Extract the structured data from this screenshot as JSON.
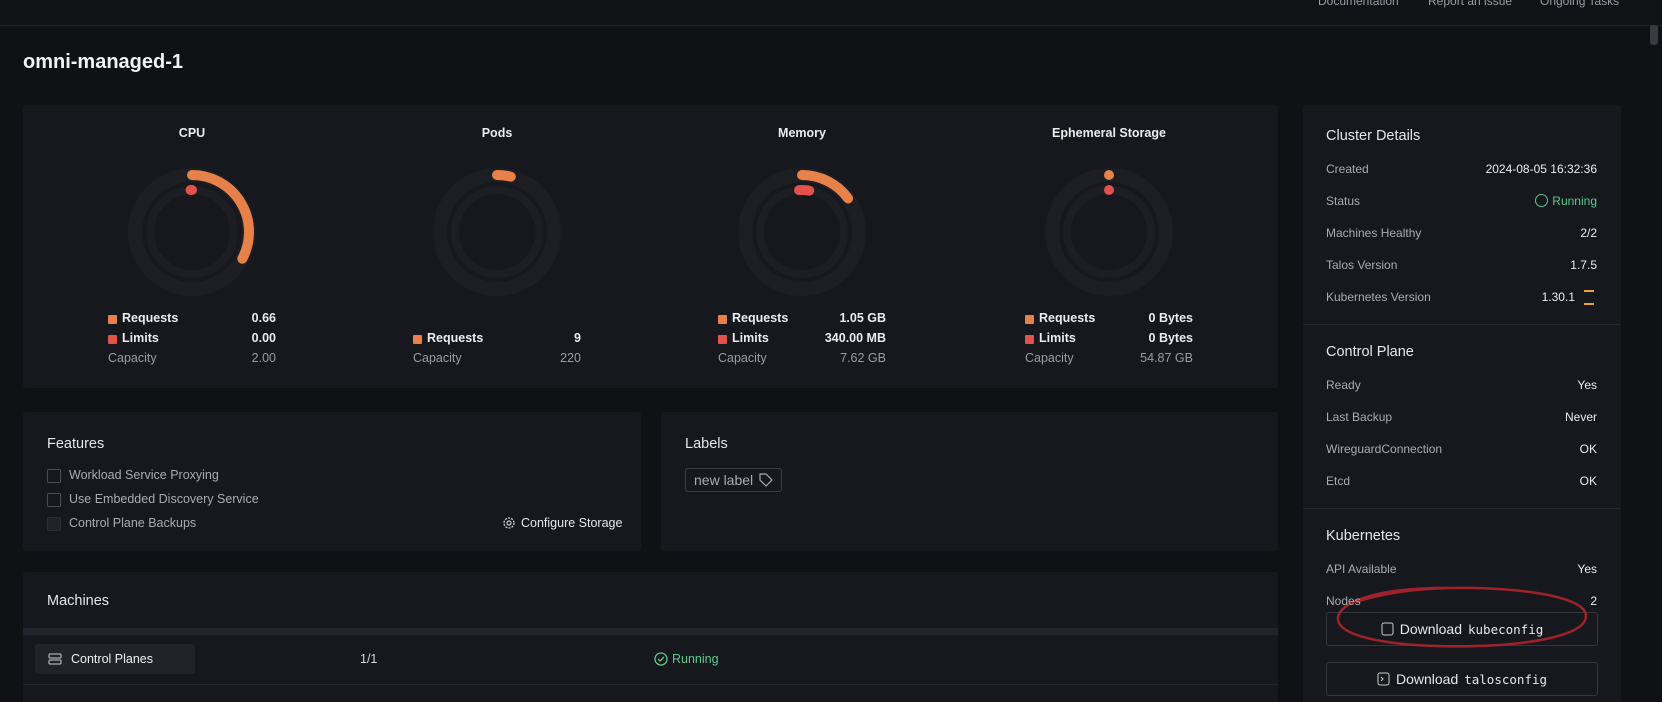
{
  "header": {
    "links": [
      "Documentation",
      "Report an issue",
      "Ongoing Tasks"
    ]
  },
  "title": "omni-managed-1",
  "gauges": [
    {
      "title": "CPU",
      "rows": [
        {
          "label": "Requests",
          "value": "0.66"
        },
        {
          "label": "Limits",
          "value": "0.00"
        },
        {
          "label": "Capacity",
          "value": "2.00"
        }
      ]
    },
    {
      "title": "Pods",
      "rows": [
        {
          "label": "Requests",
          "value": "9"
        },
        {
          "label": "Capacity",
          "value": "220"
        }
      ]
    },
    {
      "title": "Memory",
      "rows": [
        {
          "label": "Requests",
          "value": "1.05 GB"
        },
        {
          "label": "Limits",
          "value": "340.00 MB"
        },
        {
          "label": "Capacity",
          "value": "7.62 GB"
        }
      ]
    },
    {
      "title": "Ephemeral Storage",
      "rows": [
        {
          "label": "Requests",
          "value": "0 Bytes"
        },
        {
          "label": "Limits",
          "value": "0 Bytes"
        },
        {
          "label": "Capacity",
          "value": "54.87 GB"
        }
      ]
    }
  ],
  "features": {
    "title": "Features",
    "items": [
      "Workload Service Proxying",
      "Use Embedded Discovery Service",
      "Control Plane Backups"
    ],
    "action": "Configure Storage"
  },
  "labels": {
    "title": "Labels",
    "tag": "new label"
  },
  "machines": {
    "title": "Machines",
    "rows": [
      {
        "name": "Control Planes",
        "count": "1/1",
        "status": "Running"
      }
    ]
  },
  "sidebar": [
    {
      "title": "Cluster Details",
      "rows": [
        {
          "label": "Created",
          "value": "2024-08-05 16:32:36"
        },
        {
          "label": "Status",
          "value": "Running"
        },
        {
          "label": "Machines Healthy",
          "value": "2/2"
        },
        {
          "label": "Talos Version",
          "value": "1.7.5"
        },
        {
          "label": "Kubernetes Version",
          "value": "1.30.1"
        }
      ]
    },
    {
      "title": "Control Plane",
      "rows": [
        {
          "label": "Ready",
          "value": "Yes"
        },
        {
          "label": "Last Backup",
          "value": "Never"
        },
        {
          "label": "WireguardConnection",
          "value": "OK"
        },
        {
          "label": "Etcd",
          "value": "OK"
        }
      ]
    },
    {
      "title": "Kubernetes",
      "rows": [
        {
          "label": "API Available",
          "value": "Yes"
        },
        {
          "label": "Nodes",
          "value": "2"
        }
      ]
    }
  ],
  "buttons": [
    {
      "label": "Download",
      "code": "kubeconfig"
    },
    {
      "label": "Download",
      "code": "talosconfig"
    }
  ]
}
